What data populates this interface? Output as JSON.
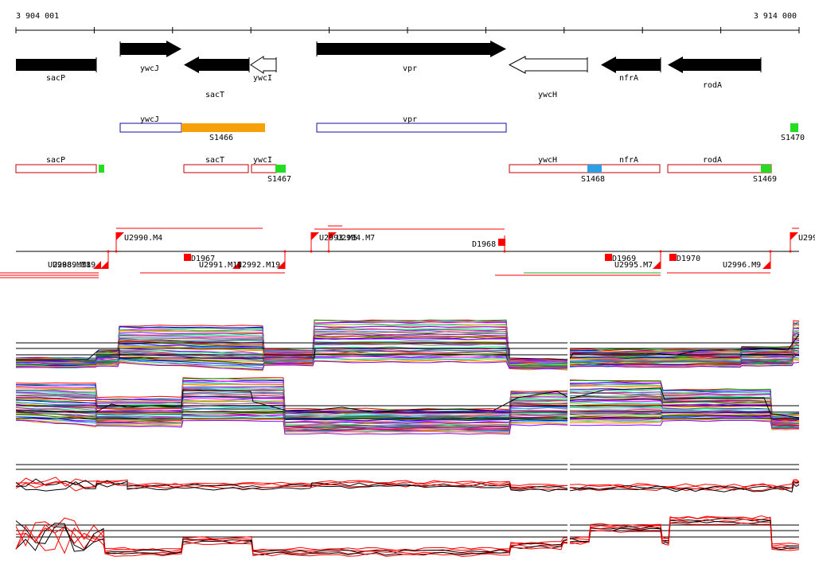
{
  "coordinates": {
    "start": "3 904 001",
    "end": "3 914 000"
  },
  "genes": [
    {
      "name": "sacP",
      "strand": "+",
      "fill": "black"
    },
    {
      "name": "ywcJ",
      "strand": "+",
      "fill": "black"
    },
    {
      "name": "sacT",
      "strand": "-",
      "fill": "black"
    },
    {
      "name": "ywcI",
      "strand": "-",
      "fill": "white"
    },
    {
      "name": "vpr",
      "strand": "+",
      "fill": "black"
    },
    {
      "name": "ywcH",
      "strand": "-",
      "fill": "white"
    },
    {
      "name": "nfrA",
      "strand": "-",
      "fill": "black"
    },
    {
      "name": "rodA",
      "strand": "-",
      "fill": "black"
    }
  ],
  "segments": {
    "upper": [
      {
        "label": "ywcJ"
      },
      {
        "label": "vpr"
      }
    ],
    "lower": [
      {
        "label": "sacP"
      },
      {
        "label": "sacT"
      },
      {
        "label": "ywcI"
      },
      {
        "label": "ywcH"
      },
      {
        "label": "nfrA"
      },
      {
        "label": "rodA"
      }
    ]
  },
  "sigma_sites": [
    "S1466",
    "S1467",
    "S1468",
    "S1469",
    "S1470"
  ],
  "colors": {
    "black": "#000000",
    "gene_outline": "#c00000",
    "operon_outline": "#1010a0",
    "orange": "#f7a10a",
    "green": "#22dd22",
    "blue": "#2aa0e6",
    "red": "#ff0000",
    "axis": "#000000"
  },
  "transcripts": {
    "upper": [
      {
        "label": "U2990.M4"
      },
      {
        "label": "U2993.M5"
      },
      {
        "label": "U2994.M7"
      },
      {
        "label": "D1968"
      },
      {
        "label": "U299"
      }
    ],
    "lower": [
      {
        "label": "U2988.M18"
      },
      {
        "label": "U2989.M19"
      },
      {
        "label": "D1967"
      },
      {
        "label": "U2991.M11"
      },
      {
        "label": "U2992.M19"
      },
      {
        "label": "D1969"
      },
      {
        "label": "U2995.M7"
      },
      {
        "label": "D1970"
      },
      {
        "label": "U2996.M9"
      }
    ]
  }
}
